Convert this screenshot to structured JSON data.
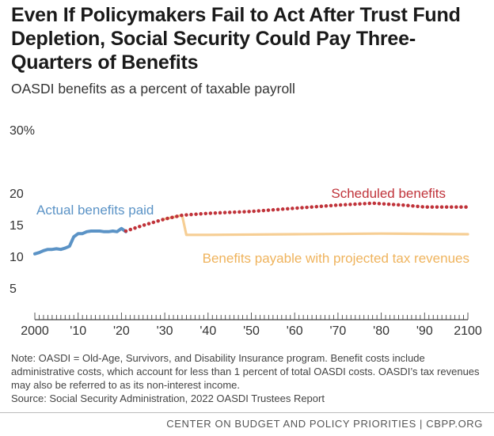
{
  "title": "Even If Policymakers Fail to Act After Trust Fund Depletion, Social Security Could Pay Three-Quarters of Benefits",
  "subtitle": "OASDI benefits as a percent of taxable payroll",
  "note": "Note: OASDI = Old-Age, Survivors, and Disability Insurance program. Benefit costs include administrative costs, which account for less than 1 percent of total OASDI costs. OASDI’s tax revenues may also be referred to as its non-interest income.",
  "source": "Source: Social Security Administration, 2022 OASDI Trustees Report",
  "footer": "CENTER ON BUDGET AND POLICY PRIORITIES | CBPP.ORG",
  "colors": {
    "actual": "#5b93c6",
    "scheduled": "#c0333a",
    "payable": "#f6ce94",
    "axis": "#444444"
  },
  "chart_data": {
    "type": "line",
    "xlim": [
      2000,
      2100
    ],
    "ylim": [
      0,
      30
    ],
    "y_ticks": [
      5,
      10,
      15,
      20,
      30
    ],
    "y_tick_labels": [
      "5",
      "10",
      "15",
      "20",
      "30%"
    ],
    "x_ticks": [
      2000,
      2010,
      2020,
      2030,
      2040,
      2050,
      2060,
      2070,
      2080,
      2090,
      2100
    ],
    "x_tick_labels": [
      "2000",
      "'10",
      "'20",
      "'30",
      "'40",
      "'50",
      "'60",
      "'70",
      "'80",
      "'90",
      "2100"
    ],
    "grid": false,
    "series": [
      {
        "name": "Actual benefits paid",
        "style": "solid",
        "color": "#5b93c6",
        "x": [
          2000,
          2001,
          2002,
          2003,
          2004,
          2005,
          2006,
          2007,
          2008,
          2009,
          2010,
          2011,
          2012,
          2013,
          2014,
          2015,
          2016,
          2017,
          2018,
          2019,
          2020,
          2021
        ],
        "y": [
          10.4,
          10.6,
          10.9,
          11.1,
          11.1,
          11.2,
          11.1,
          11.3,
          11.6,
          13.1,
          13.6,
          13.6,
          13.9,
          14.0,
          14.0,
          14.0,
          13.9,
          13.9,
          14.0,
          13.9,
          14.4,
          13.9
        ]
      },
      {
        "name": "Scheduled benefits",
        "style": "dotted",
        "color": "#c0333a",
        "x": [
          2021,
          2025,
          2030,
          2034,
          2040,
          2050,
          2060,
          2070,
          2078,
          2085,
          2090,
          2100
        ],
        "y": [
          14.0,
          14.9,
          15.9,
          16.5,
          16.8,
          17.1,
          17.6,
          18.1,
          18.4,
          18.1,
          17.8,
          17.8
        ]
      },
      {
        "name": "Benefits payable with projected tax revenues",
        "style": "solid",
        "color": "#f6ce94",
        "x": [
          2030,
          2034,
          2035,
          2040,
          2060,
          2080,
          2100
        ],
        "y": [
          15.9,
          16.5,
          13.4,
          13.4,
          13.5,
          13.6,
          13.5
        ]
      }
    ],
    "annotations": [
      {
        "text": "Actual benefits paid",
        "series": 0,
        "placement": "above the actual line, left"
      },
      {
        "text": "Scheduled benefits",
        "series": 1,
        "placement": "above the dotted line, right"
      },
      {
        "text": "Benefits payable with projected tax revenues",
        "series": 2,
        "placement": "below the payable line, right"
      }
    ]
  }
}
